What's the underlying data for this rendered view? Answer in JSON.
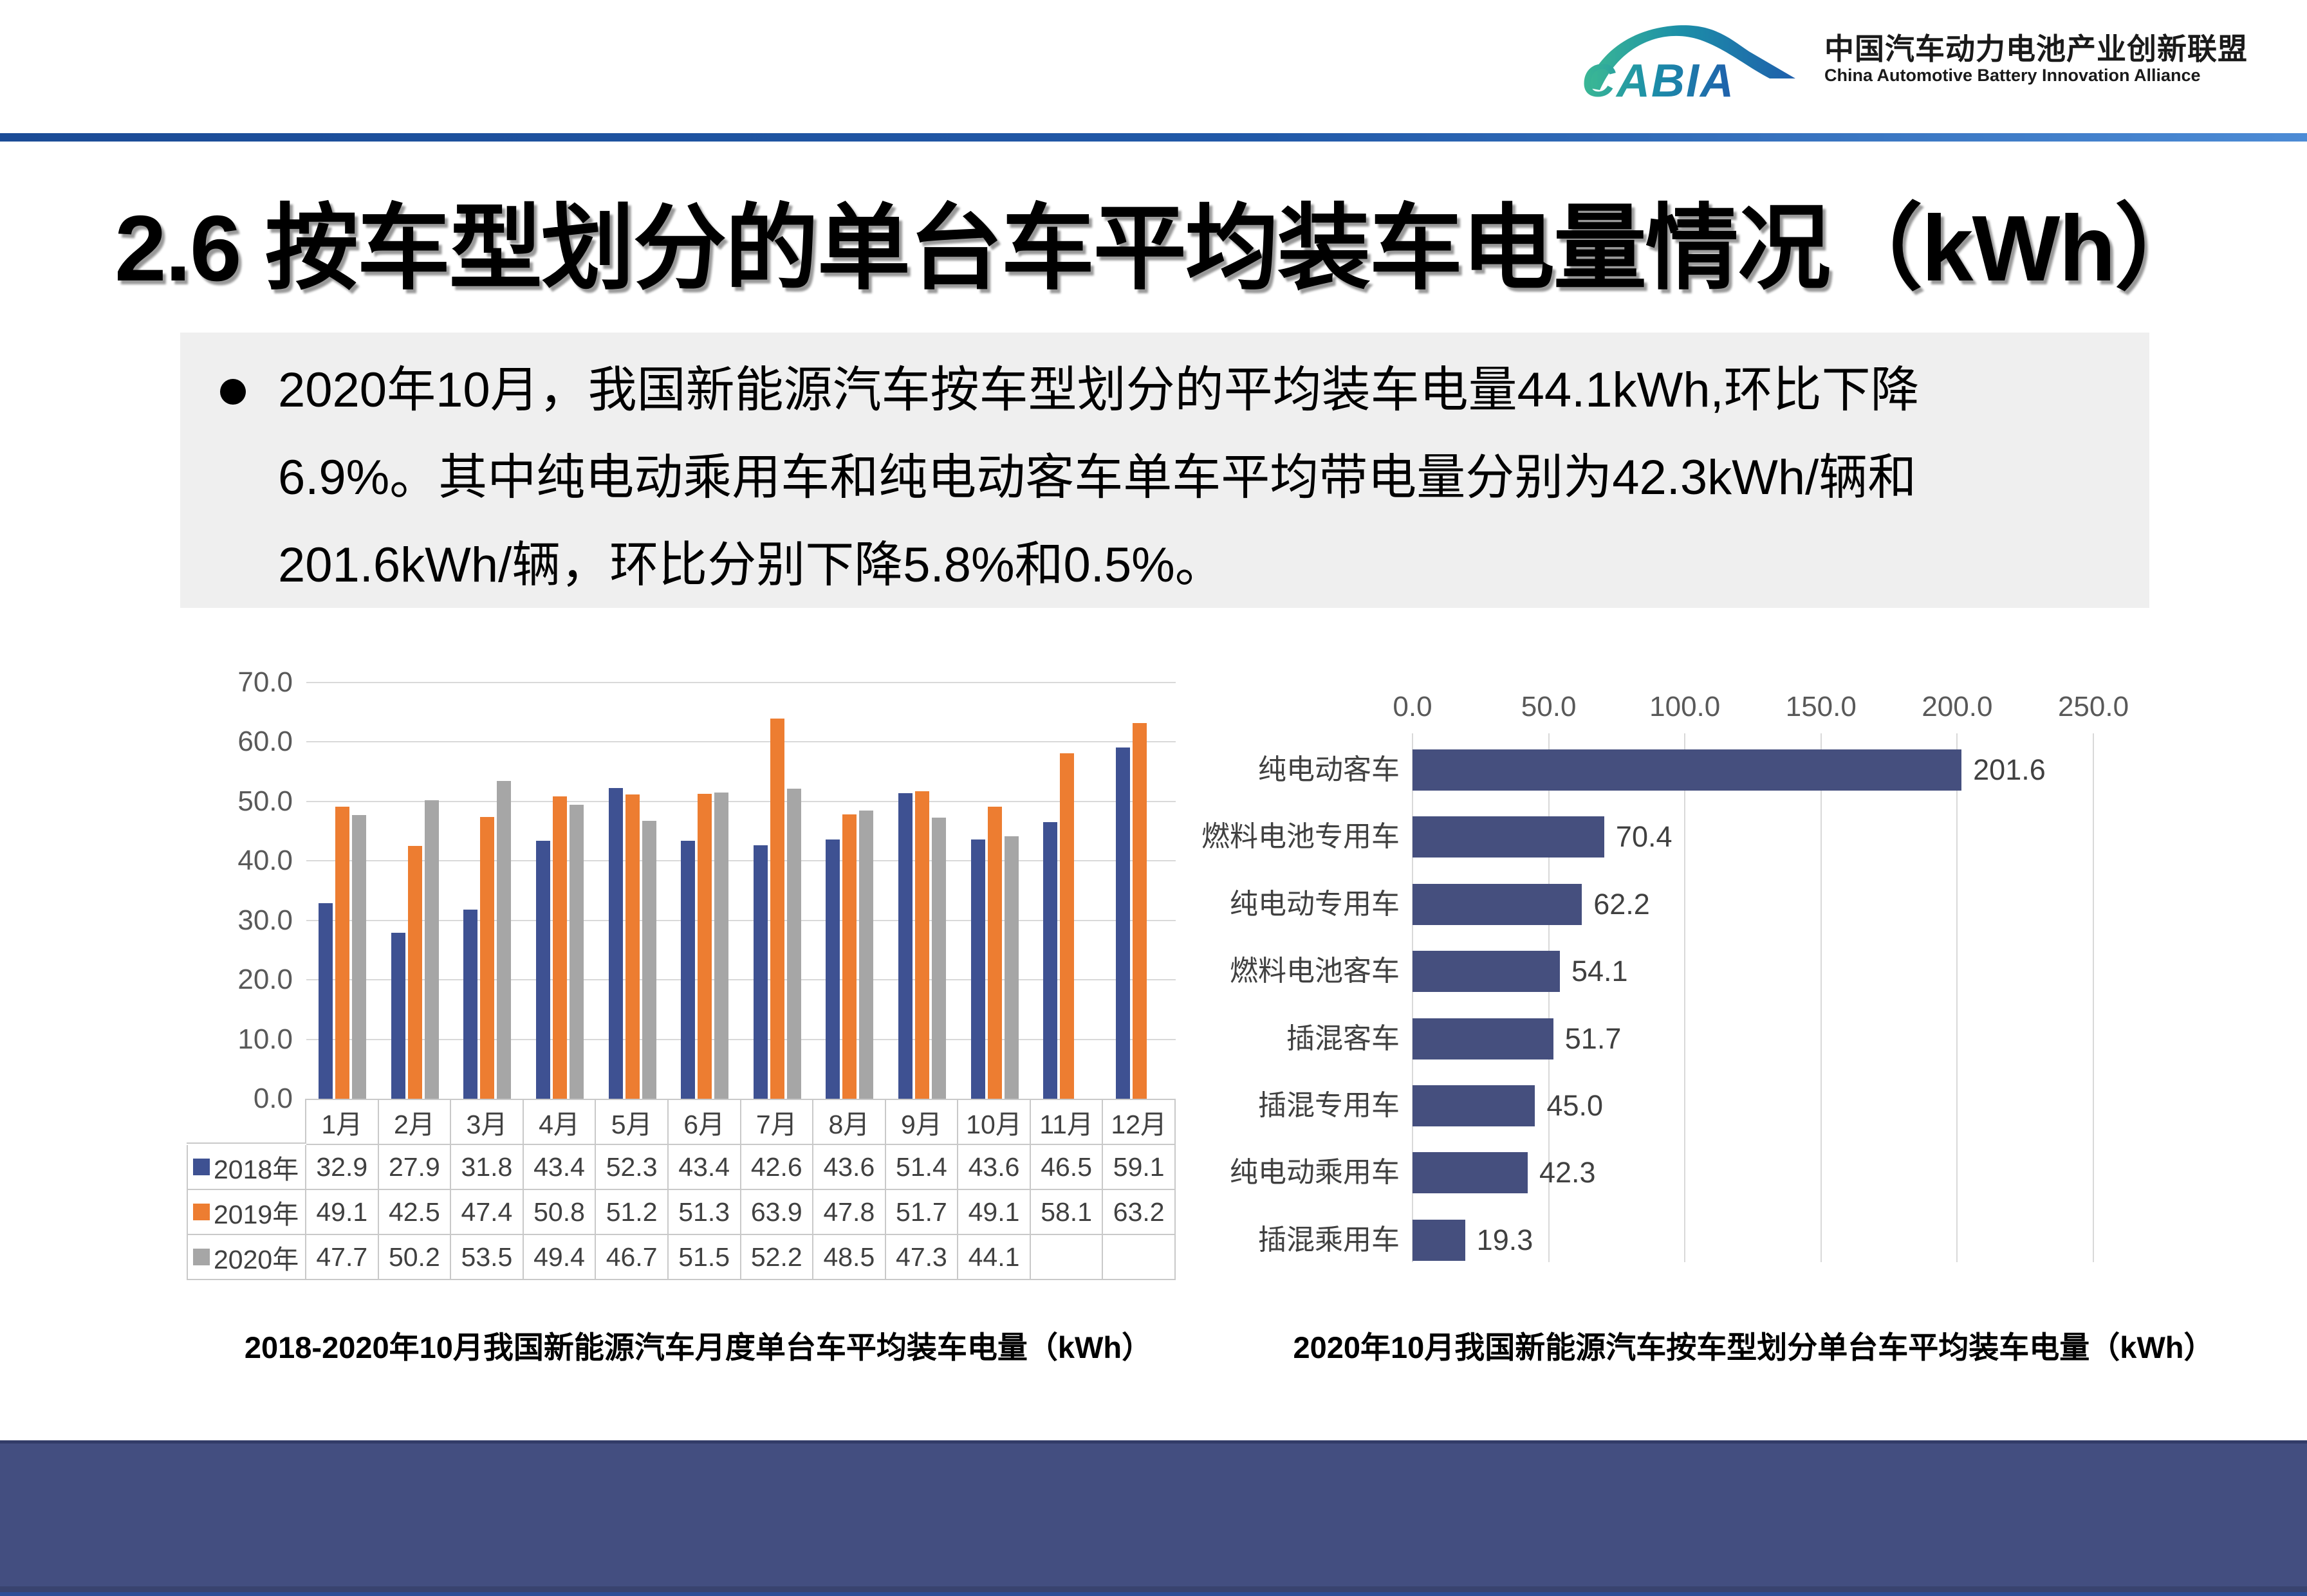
{
  "header": {
    "logo_text": "CABIA",
    "org_name_cn": "中国汽车动力电池产业创新联盟",
    "org_name_en": "China Automotive Battery Innovation Alliance"
  },
  "title": "2.6 按车型划分的单台车平均装车电量情况（kWh）",
  "summary": {
    "lines": [
      "2020年10月，我国新能源汽车按车型划分的平均装车电量44.1kWh,环比下降",
      "6.9%。其中纯电动乘用车和纯电动客车单车平均带电量分别为42.3kWh/辆和",
      "201.6kWh/辆，环比分别下降5.8%和0.5%。"
    ]
  },
  "chart_data": [
    {
      "type": "bar",
      "title": "2018-2020年10月我国新能源汽车月度单台车平均装车电量（kWh）",
      "categories": [
        "1月",
        "2月",
        "3月",
        "4月",
        "5月",
        "6月",
        "7月",
        "8月",
        "9月",
        "10月",
        "11月",
        "12月"
      ],
      "series": [
        {
          "name": "2018年",
          "color": "#3E5192",
          "values": [
            32.9,
            27.9,
            31.8,
            43.4,
            52.3,
            43.4,
            42.6,
            43.6,
            51.4,
            43.6,
            46.5,
            59.1
          ]
        },
        {
          "name": "2019年",
          "color": "#ED7D31",
          "values": [
            49.1,
            42.5,
            47.4,
            50.8,
            51.2,
            51.3,
            63.9,
            47.8,
            51.7,
            49.1,
            58.1,
            63.2
          ]
        },
        {
          "name": "2020年",
          "color": "#A6A6A6",
          "values": [
            47.7,
            50.2,
            53.5,
            49.4,
            46.7,
            51.5,
            52.2,
            48.5,
            47.3,
            44.1,
            null,
            null
          ]
        }
      ],
      "ylabel": "",
      "xlabel": "",
      "ylim": [
        0,
        70
      ],
      "ytick_step": 10,
      "grid": true,
      "legend_position": "table-left"
    },
    {
      "type": "bar-horizontal",
      "title": "2020年10月我国新能源汽车按车型划分单台车平均装车电量（kWh）",
      "categories": [
        "纯电动客车",
        "燃料电池专用车",
        "纯电动专用车",
        "燃料电池客车",
        "插混客车",
        "插混专用车",
        "纯电动乘用车",
        "插混乘用车"
      ],
      "values": [
        201.6,
        70.4,
        62.2,
        54.1,
        51.7,
        45.0,
        42.3,
        19.3
      ],
      "xlim": [
        0,
        250
      ],
      "xtick_step": 50,
      "bar_color": "#454F7E",
      "grid": true
    }
  ],
  "colors": {
    "accent_rule": "#1B4B96",
    "footer": "#434E80",
    "summary_box": "#EFEFEF",
    "gridline": "#D9D9D9",
    "table_border": "#C9C9C9",
    "axis_text": "#595959",
    "cell_text": "#404040",
    "logo_teal": "#2FA893",
    "logo_blue": "#1F5FAC"
  }
}
